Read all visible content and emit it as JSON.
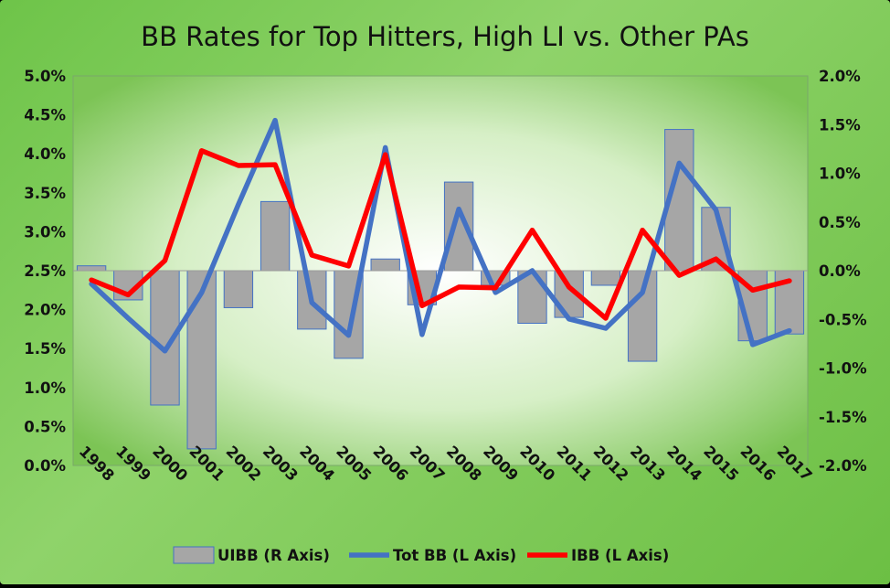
{
  "chart_data": {
    "type": "bar+line",
    "title": "BB Rates for Top Hitters, High LI vs. Other PAs",
    "categories": [
      "1998",
      "1999",
      "2000",
      "2001",
      "2002",
      "2003",
      "2004",
      "2005",
      "2006",
      "2007",
      "2008",
      "2009",
      "2010",
      "2011",
      "2012",
      "2013",
      "2014",
      "2015",
      "2016",
      "2017"
    ],
    "left_axis": {
      "min": 0.0,
      "max": 0.05,
      "step": 0.005,
      "ticks": [
        "0.0%",
        "0.5%",
        "1.0%",
        "1.5%",
        "2.0%",
        "2.5%",
        "3.0%",
        "3.5%",
        "4.0%",
        "4.5%",
        "5.0%"
      ]
    },
    "right_axis": {
      "min": -0.02,
      "max": 0.02,
      "step": 0.005,
      "ticks": [
        "-2.0%",
        "-1.5%",
        "-1.0%",
        "-0.5%",
        "0.0%",
        "0.5%",
        "1.0%",
        "1.5%",
        "2.0%"
      ]
    },
    "series": [
      {
        "name": "UIBB (R Axis)",
        "type": "bar",
        "axis": "right",
        "color": "#a6a6a6",
        "edge": "#4472c4",
        "values": [
          0.0005,
          -0.003,
          -0.0138,
          -0.0183,
          -0.0038,
          0.0071,
          -0.006,
          -0.009,
          0.0012,
          -0.0035,
          0.0091,
          -0.0015,
          -0.0054,
          -0.0048,
          -0.0015,
          -0.0093,
          0.0145,
          0.0065,
          -0.0072,
          -0.0065
        ]
      },
      {
        "name": "Tot BB (L Axis)",
        "type": "line",
        "axis": "left",
        "color": "#4472c4",
        "values": [
          0.0233,
          0.0189,
          0.0147,
          0.0222,
          0.0335,
          0.0443,
          0.0209,
          0.0167,
          0.0408,
          0.0168,
          0.0329,
          0.0222,
          0.025,
          0.0188,
          0.0176,
          0.0222,
          0.0388,
          0.0328,
          0.0155,
          0.0173
        ]
      },
      {
        "name": "IBB (L Axis)",
        "type": "line",
        "axis": "left",
        "color": "#ff0000",
        "values": [
          0.0238,
          0.0219,
          0.0263,
          0.0404,
          0.0385,
          0.0386,
          0.027,
          0.0256,
          0.0399,
          0.0205,
          0.0229,
          0.0228,
          0.0302,
          0.0229,
          0.0189,
          0.0302,
          0.0244,
          0.0265,
          0.0225,
          0.0237
        ]
      }
    ],
    "legend": [
      "UIBB (R Axis)",
      "Tot BB (L Axis)",
      "IBB (L Axis)"
    ]
  }
}
